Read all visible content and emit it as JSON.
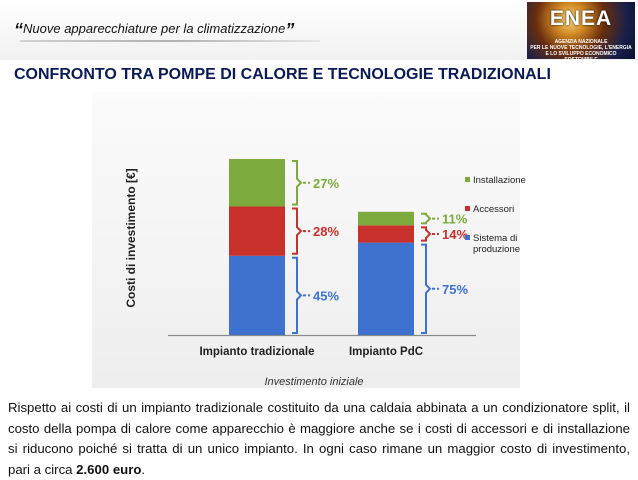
{
  "header": {
    "quote_open": "“",
    "subtitle": "Nuove apparecchiature per la climatizzazione",
    "quote_close": "”",
    "logo": {
      "word": "ENEA",
      "lines": [
        "AGENZIA NAZIONALE",
        "PER LE NUOVE TECNOLOGIE, L'ENERGIA",
        "E LO SVILUPPO ECONOMICO SOSTENIBILE"
      ]
    }
  },
  "title": "CONFRONTO TRA POMPE DI CALORE E TECNOLOGIE TRADIZIONALI",
  "chart_data": {
    "type": "bar",
    "stacked": true,
    "categories": [
      "Impianto tradizionale",
      "Impianto PdC"
    ],
    "series": [
      {
        "name": "Sistema di produzione",
        "values": [
          45,
          75
        ],
        "color": "#3f72cf"
      },
      {
        "name": "Accessori",
        "values": [
          28,
          14
        ],
        "color": "#c8302c"
      },
      {
        "name": "Installazione",
        "values": [
          27,
          11
        ],
        "color": "#7caa3c"
      }
    ],
    "data_labels": [
      [
        "45%",
        "28%",
        "27%"
      ],
      [
        "75%",
        "14%",
        "11%"
      ]
    ],
    "relative_totals": [
      1.0,
      0.7
    ],
    "xlabel": "Investimento iniziale",
    "ylabel": "Costi di investimento [€]",
    "legend": [
      "Installazione",
      "Accessori",
      "Sistema di produzione"
    ],
    "legend_placement": "right",
    "grid": false
  },
  "body": {
    "text": "Rispetto ai costi di un impianto tradizionale costituito da una caldaia abbinata a un condizionatore split, il costo della pompa di calore come apparecchio è maggiore anche se i costi di accessori e di installazione si riducono poiché si tratta di un unico impianto. In ogni caso rimane un maggior costo di investimento, pari a circa ",
    "highlight": "2.600 euro",
    "end": "."
  }
}
